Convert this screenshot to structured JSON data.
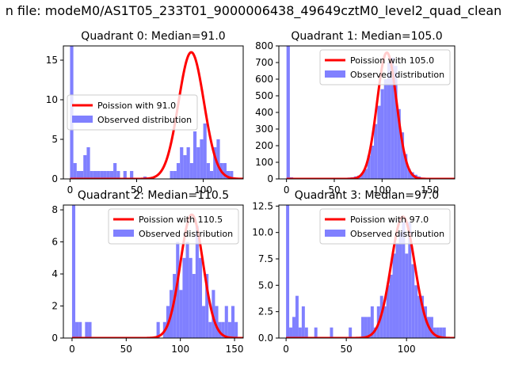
{
  "figure": {
    "title": "n file: modeM0/AS1T05_233T01_9000006438_49649cztM0_level2_quad_clean"
  },
  "colors": {
    "poisson": "#ff0000",
    "observed": "#8080ff"
  },
  "chart_data": [
    {
      "type": "bar",
      "title": "Quadrant 0: Median=91.0",
      "xlim": [
        -5,
        130
      ],
      "ylim": [
        0,
        16.8
      ],
      "xticks": [
        0,
        50,
        100
      ],
      "yticks": [
        0,
        5,
        10,
        15
      ],
      "legend": {
        "position": "center-left",
        "entries": [
          "Poission with 91.0",
          "Observed distribution"
        ]
      },
      "poisson_mean": 91.0,
      "poisson_peak": 16.0,
      "bin_width": 2.5,
      "observed_bins": [
        [
          0,
          16.8
        ],
        [
          2.5,
          2
        ],
        [
          5,
          1
        ],
        [
          7.5,
          1
        ],
        [
          10,
          3
        ],
        [
          12.5,
          4
        ],
        [
          15,
          1
        ],
        [
          17.5,
          1
        ],
        [
          20,
          1
        ],
        [
          22.5,
          1
        ],
        [
          25,
          1
        ],
        [
          27.5,
          1
        ],
        [
          30,
          1
        ],
        [
          32.5,
          2
        ],
        [
          35,
          1
        ],
        [
          40,
          1
        ],
        [
          45,
          1
        ],
        [
          55,
          0.3
        ],
        [
          75,
          1
        ],
        [
          77.5,
          1
        ],
        [
          80,
          2
        ],
        [
          82.5,
          4
        ],
        [
          85,
          3
        ],
        [
          87.5,
          4
        ],
        [
          90,
          2
        ],
        [
          92.5,
          6
        ],
        [
          95,
          4
        ],
        [
          97.5,
          5
        ],
        [
          100,
          7
        ],
        [
          102.5,
          2
        ],
        [
          105,
          1
        ],
        [
          107.5,
          4
        ],
        [
          110,
          5
        ],
        [
          112.5,
          2
        ],
        [
          115,
          2
        ],
        [
          117.5,
          1
        ],
        [
          120,
          1
        ]
      ]
    },
    {
      "type": "bar",
      "title": "Quadrant 1: Median=105.0",
      "xlim": [
        -8,
        176
      ],
      "ylim": [
        0,
        800
      ],
      "xticks": [
        0,
        50,
        100,
        150
      ],
      "yticks": [
        0,
        100,
        200,
        300,
        400,
        500,
        600,
        700,
        800
      ],
      "legend": {
        "position": "top-right",
        "entries": [
          "Poission with 105.0",
          "Observed distribution"
        ]
      },
      "poisson_mean": 105.0,
      "poisson_peak": 760,
      "bin_width": 3.5,
      "observed_bins": [
        [
          0,
          800
        ],
        [
          3.5,
          10
        ],
        [
          60,
          5
        ],
        [
          63.5,
          8
        ],
        [
          67,
          10
        ],
        [
          70.5,
          15
        ],
        [
          74,
          20
        ],
        [
          77.5,
          35
        ],
        [
          81,
          60
        ],
        [
          84.5,
          140
        ],
        [
          88,
          200
        ],
        [
          91.5,
          330
        ],
        [
          95,
          440
        ],
        [
          98.5,
          540
        ],
        [
          102,
          600
        ],
        [
          105.5,
          700
        ],
        [
          109,
          730
        ],
        [
          112.5,
          680
        ],
        [
          116,
          420
        ],
        [
          119.5,
          280
        ],
        [
          123,
          150
        ],
        [
          126.5,
          60
        ],
        [
          130,
          40
        ],
        [
          133.5,
          25
        ],
        [
          137,
          15
        ],
        [
          140.5,
          8
        ],
        [
          144,
          5
        ],
        [
          147.5,
          3
        ],
        [
          151,
          2
        ]
      ]
    },
    {
      "type": "bar",
      "title": "Quadrant 2: Median=110.5",
      "xlim": [
        -8,
        158
      ],
      "ylim": [
        0,
        8.3
      ],
      "xticks": [
        0,
        50,
        100,
        150
      ],
      "yticks": [
        0,
        2,
        4,
        6,
        8
      ],
      "legend": {
        "position": "top-right",
        "entries": [
          "Poission with 110.5",
          "Observed distribution"
        ]
      },
      "poisson_mean": 110.5,
      "poisson_peak": 7.7,
      "bin_width": 3,
      "observed_bins": [
        [
          0,
          8.3
        ],
        [
          3,
          1
        ],
        [
          6,
          1
        ],
        [
          12,
          1
        ],
        [
          15,
          1
        ],
        [
          78,
          1
        ],
        [
          84,
          1
        ],
        [
          87,
          2
        ],
        [
          90,
          3
        ],
        [
          93,
          4
        ],
        [
          96,
          6
        ],
        [
          99,
          3
        ],
        [
          102,
          5
        ],
        [
          105,
          6
        ],
        [
          108,
          5
        ],
        [
          111,
          4
        ],
        [
          114,
          7
        ],
        [
          117,
          5
        ],
        [
          120,
          2
        ],
        [
          123,
          4
        ],
        [
          126,
          1
        ],
        [
          129,
          3
        ],
        [
          132,
          2
        ],
        [
          135,
          1
        ],
        [
          138,
          1
        ],
        [
          141,
          2
        ],
        [
          144,
          1
        ],
        [
          147,
          2
        ],
        [
          150,
          1
        ]
      ]
    },
    {
      "type": "bar",
      "title": "Quadrant 3: Median=97.0",
      "xlim": [
        -6,
        140
      ],
      "ylim": [
        0,
        12.6
      ],
      "xticks": [
        0,
        50,
        100
      ],
      "yticks": [
        0.0,
        2.5,
        5.0,
        7.5,
        10.0,
        12.5
      ],
      "legend": {
        "position": "top-right",
        "entries": [
          "Poission with 97.0",
          "Observed distribution"
        ]
      },
      "poisson_mean": 97.0,
      "poisson_peak": 11.5,
      "bin_width": 2.6,
      "observed_bins": [
        [
          0,
          12.6
        ],
        [
          2.6,
          1
        ],
        [
          5.2,
          2
        ],
        [
          7.8,
          4
        ],
        [
          10.4,
          1
        ],
        [
          13,
          3
        ],
        [
          15.6,
          1
        ],
        [
          23.4,
          1
        ],
        [
          36.4,
          1
        ],
        [
          52,
          1
        ],
        [
          62.4,
          2
        ],
        [
          65,
          2
        ],
        [
          67.6,
          2
        ],
        [
          70.2,
          3
        ],
        [
          72.8,
          1
        ],
        [
          75.4,
          3
        ],
        [
          78,
          4
        ],
        [
          80.6,
          3
        ],
        [
          83.2,
          5
        ],
        [
          85.8,
          6
        ],
        [
          88.4,
          8
        ],
        [
          91,
          9
        ],
        [
          93.6,
          10
        ],
        [
          96.2,
          11
        ],
        [
          98.8,
          8
        ],
        [
          101.4,
          11
        ],
        [
          104,
          7
        ],
        [
          106.6,
          5
        ],
        [
          109.2,
          4
        ],
        [
          111.8,
          4
        ],
        [
          114.4,
          3
        ],
        [
          117,
          2
        ],
        [
          119.6,
          2
        ],
        [
          122.2,
          1
        ],
        [
          124.8,
          1
        ],
        [
          127.4,
          1
        ],
        [
          130,
          1
        ]
      ]
    }
  ]
}
